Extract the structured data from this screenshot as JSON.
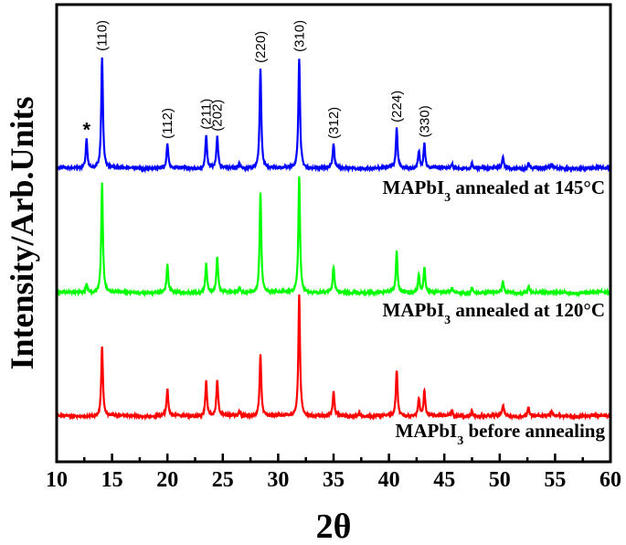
{
  "chart_data": {
    "type": "line",
    "title": "",
    "xlabel": "2θ",
    "ylabel": "Intensity/Arb.Units",
    "xlim": [
      10,
      60
    ],
    "ylim": [
      0,
      500
    ],
    "xticks": [
      10,
      15,
      20,
      25,
      30,
      35,
      40,
      45,
      50,
      55,
      60
    ],
    "xtick_labels": [
      "10",
      "15",
      "20",
      "25",
      "30",
      "35",
      "40",
      "45",
      "50",
      "55",
      "60"
    ],
    "grid": false,
    "series": [
      {
        "name": "MAPbI3 annealed at 145°C",
        "label_main": "MAPbI",
        "label_sub": "3",
        "label_rest": " annealed at 145°C",
        "color": "#0000ff",
        "offset": 321,
        "peaks": [
          [
            12.7,
            32
          ],
          [
            14.1,
            122
          ],
          [
            20.0,
            26
          ],
          [
            23.5,
            36
          ],
          [
            24.5,
            34
          ],
          [
            26.5,
            5
          ],
          [
            28.4,
            109
          ],
          [
            31.9,
            121
          ],
          [
            35.0,
            26
          ],
          [
            40.7,
            44
          ],
          [
            42.7,
            19
          ],
          [
            43.2,
            27
          ],
          [
            45.7,
            5
          ],
          [
            47.5,
            6
          ],
          [
            50.3,
            12
          ],
          [
            52.6,
            6
          ],
          [
            54.7,
            4
          ]
        ]
      },
      {
        "name": "MAPbI3 annealed at 120°C",
        "label_main": "MAPbI",
        "label_sub": "3",
        "label_rest": " annealed at 120°C",
        "color": "#00ff00",
        "offset": 185,
        "peaks": [
          [
            12.7,
            10
          ],
          [
            14.1,
            120
          ],
          [
            20.0,
            30
          ],
          [
            23.5,
            33
          ],
          [
            24.5,
            38
          ],
          [
            26.5,
            5
          ],
          [
            28.4,
            110
          ],
          [
            31.9,
            128
          ],
          [
            35.0,
            28
          ],
          [
            40.7,
            45
          ],
          [
            42.7,
            20
          ],
          [
            43.2,
            28
          ],
          [
            45.7,
            5
          ],
          [
            47.5,
            6
          ],
          [
            50.3,
            12
          ],
          [
            52.6,
            8
          ]
        ]
      },
      {
        "name": "MAPbI3 before annealing",
        "label_main": "MAPbI",
        "label_sub": "3",
        "label_rest": " before annealing",
        "color": "#ff0000",
        "offset": 50,
        "peaks": [
          [
            14.1,
            76
          ],
          [
            20.0,
            30
          ],
          [
            23.5,
            38
          ],
          [
            24.5,
            39
          ],
          [
            26.5,
            5
          ],
          [
            28.4,
            68
          ],
          [
            31.9,
            133
          ],
          [
            35.0,
            26
          ],
          [
            37.3,
            4
          ],
          [
            40.7,
            50
          ],
          [
            42.7,
            20
          ],
          [
            43.2,
            28
          ],
          [
            45.7,
            5
          ],
          [
            47.5,
            6
          ],
          [
            50.3,
            12
          ],
          [
            52.6,
            10
          ],
          [
            54.7,
            5
          ]
        ]
      }
    ],
    "annotations": [
      {
        "text": "*",
        "x": 12.7
      },
      {
        "text": "(110)",
        "x": 14.1
      },
      {
        "text": "(112)",
        "x": 20.0
      },
      {
        "text": "(211)",
        "x": 23.5
      },
      {
        "text": "(202)",
        "x": 24.5
      },
      {
        "text": "(220)",
        "x": 28.4
      },
      {
        "text": "(310)",
        "x": 31.9
      },
      {
        "text": "(312)",
        "x": 35.0
      },
      {
        "text": "(224)",
        "x": 40.7
      },
      {
        "text": "(330)",
        "x": 43.2
      }
    ]
  }
}
